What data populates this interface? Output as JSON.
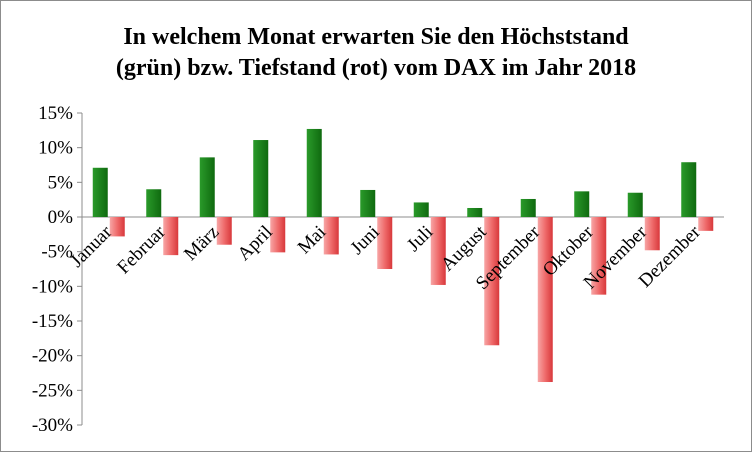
{
  "chart_data": {
    "type": "bar",
    "title_lines": [
      "In welchem Monat erwarten Sie den Höchststand",
      "(grün) bzw. Tiefstand (rot) vom DAX im Jahr 2018"
    ],
    "categories": [
      "Januar",
      "Februar",
      "März",
      "April",
      "Mai",
      "Juni",
      "Juli",
      "August",
      "September",
      "Oktober",
      "November",
      "Dezember"
    ],
    "series": [
      {
        "values": [
          7.1,
          4.0,
          8.6,
          11.1,
          12.7,
          3.9,
          2.1,
          1.3,
          2.6,
          3.7,
          3.5,
          7.9
        ],
        "color": "#1a7d1a"
      },
      {
        "values": [
          -2.8,
          -5.5,
          -4.0,
          -5.1,
          -5.4,
          -7.5,
          -9.8,
          -18.5,
          -23.8,
          -11.2,
          -4.8,
          -2.0
        ],
        "color": "#e8464a"
      }
    ],
    "ylim": [
      -30,
      15
    ],
    "yticks": [
      15,
      10,
      5,
      0,
      -5,
      -10,
      -15,
      -20,
      -25,
      -30
    ],
    "ytick_labels": [
      "15%",
      "10%",
      "5%",
      "0%",
      "-5%",
      "-10%",
      "-15%",
      "-20%",
      "-25%",
      "-30%"
    ],
    "grid": false,
    "legend": "none"
  }
}
